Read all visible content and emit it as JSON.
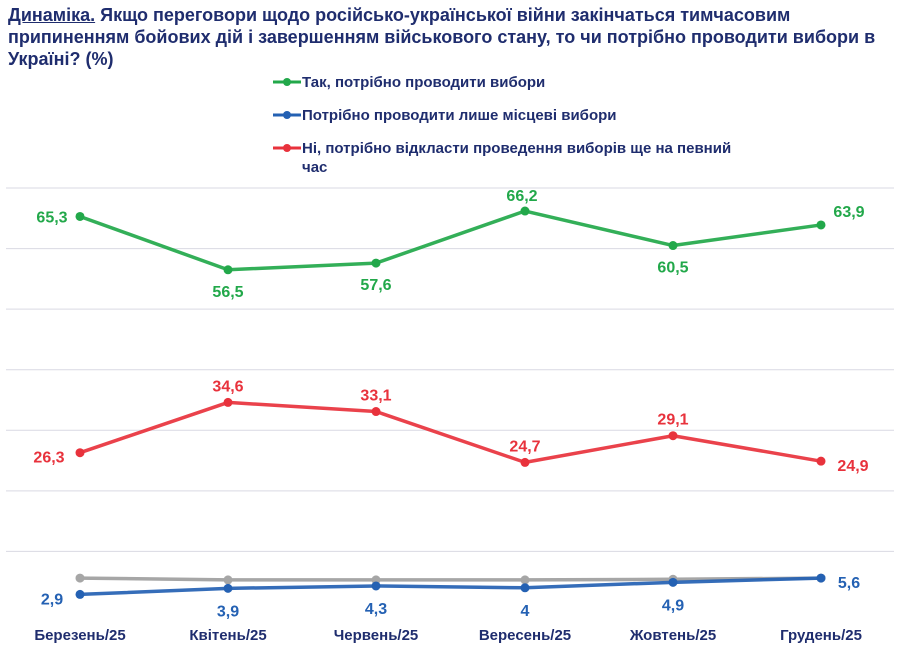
{
  "title": {
    "lead": "Динаміка.",
    "text": "Якщо переговори щодо російсько-української війни закінчаться тимчасовим припиненням бойових дій і завершенням військового стану, то чи потрібно проводити вибори в Україні? (%)"
  },
  "chart_data": {
    "type": "line",
    "categories": [
      "Березень/25",
      "Квітень/25",
      "Червень/25",
      "Вересень/25",
      "Жовтень/25",
      "Грудень/25"
    ],
    "series": [
      {
        "name": "Так, потрібно проводити вибори",
        "color": "#22a84a",
        "values": [
          65.3,
          56.5,
          57.6,
          66.2,
          60.5,
          63.9
        ],
        "labels": [
          "65,3",
          "56,5",
          "57,6",
          "66,2",
          "60,5",
          "63,9"
        ]
      },
      {
        "name": "Потрібно проводити лише місцеві вибори",
        "color": "#2461b3",
        "values": [
          2.9,
          3.9,
          4.3,
          4,
          4.9,
          5.6
        ],
        "labels": [
          "2,9",
          "3,9",
          "4,3",
          "4",
          "4,9",
          "5,6"
        ]
      },
      {
        "name": "Ні, потрібно відкласти проведення виборів ще на певний час",
        "color": "#e8323c",
        "values": [
          26.3,
          34.6,
          33.1,
          24.7,
          29.1,
          24.9
        ],
        "labels": [
          "26,3",
          "34,6",
          "33,1",
          "24,7",
          "29,1",
          "24,9"
        ]
      },
      {
        "name": "",
        "color": "#a6a6a6",
        "values": [
          5.6,
          5.3,
          5.3,
          5.3,
          5.4,
          5.6
        ],
        "labels": []
      }
    ],
    "ylim": [
      0,
      70
    ],
    "grid": true,
    "legend": "top-left"
  }
}
